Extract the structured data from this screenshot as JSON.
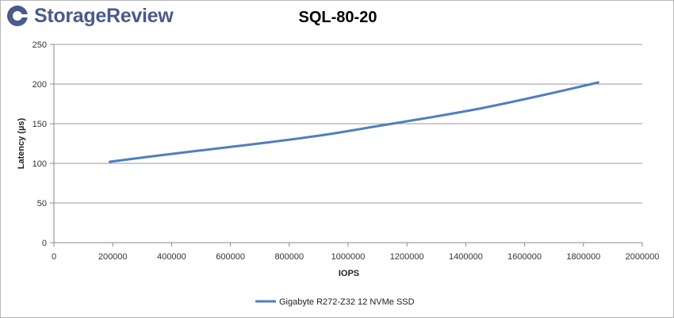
{
  "brand": {
    "name": "StorageReview",
    "logo_icon": "storagereview-logo-icon",
    "color": "#4a5a8a"
  },
  "chart_data": {
    "type": "line",
    "title": "SQL-80-20",
    "xlabel": "IOPS",
    "ylabel": "Latency (µs)",
    "xlim": [
      0,
      2000000
    ],
    "ylim": [
      0,
      250
    ],
    "xticks": [
      0,
      200000,
      400000,
      600000,
      800000,
      1000000,
      1200000,
      1400000,
      1600000,
      1800000,
      2000000
    ],
    "yticks": [
      0,
      50,
      100,
      150,
      200,
      250
    ],
    "grid": "horizontal",
    "legend_position": "bottom",
    "series": [
      {
        "name": "Gigabyte R272-Z32 12 NVMe SSD",
        "color": "#4f7fbf",
        "x": [
          190000,
          380000,
          560000,
          740000,
          920000,
          1100000,
          1280000,
          1460000,
          1650000,
          1850000
        ],
        "y": [
          102,
          111,
          119,
          127,
          136,
          147,
          158,
          170,
          185,
          202
        ]
      }
    ]
  }
}
